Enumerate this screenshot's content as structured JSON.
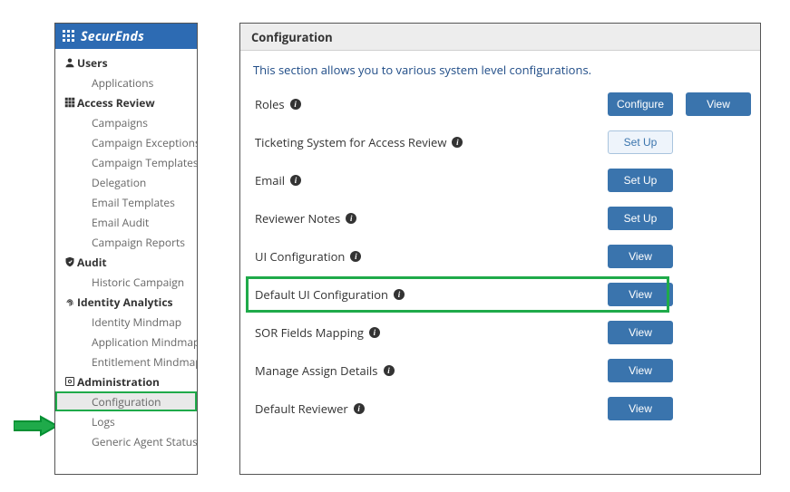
{
  "colors": {
    "brand_blue": "#2d6bb3",
    "button_blue": "#3a74ad",
    "outline_blue_text": "#3a74ad",
    "outline_blue_bg": "#eef4fb",
    "outline_blue_border": "#a9c4de",
    "highlight_green": "#1faa4a",
    "text_dark": "#333333",
    "text_muted": "#666666",
    "desc_navy": "#1f4c87",
    "header_grey": "#ededed"
  },
  "sidebar": {
    "brand": "SecurEnds",
    "items": [
      {
        "type": "section",
        "icon": "person",
        "label": "Users"
      },
      {
        "type": "sub",
        "label": "Applications"
      },
      {
        "type": "section",
        "icon": "grid",
        "label": "Access Review"
      },
      {
        "type": "sub",
        "label": "Campaigns"
      },
      {
        "type": "sub",
        "label": "Campaign Exceptions"
      },
      {
        "type": "sub",
        "label": "Campaign Templates"
      },
      {
        "type": "sub",
        "label": "Delegation"
      },
      {
        "type": "sub",
        "label": "Email Templates"
      },
      {
        "type": "sub",
        "label": "Email Audit"
      },
      {
        "type": "sub",
        "label": "Campaign Reports"
      },
      {
        "type": "section",
        "icon": "shield",
        "label": "Audit"
      },
      {
        "type": "sub",
        "label": "Historic Campaign"
      },
      {
        "type": "section",
        "icon": "fingerprint",
        "label": "Identity Analytics"
      },
      {
        "type": "sub",
        "label": "Identity Mindmap"
      },
      {
        "type": "sub",
        "label": "Application Mindmap"
      },
      {
        "type": "sub",
        "label": "Entitlement Mindmap"
      },
      {
        "type": "section",
        "icon": "gear",
        "label": "Administration"
      },
      {
        "type": "sub",
        "active": true,
        "highlight": true,
        "label": "Configuration"
      },
      {
        "type": "sub",
        "label": "Logs"
      },
      {
        "type": "sub",
        "label": "Generic Agent Status"
      }
    ]
  },
  "main": {
    "title": "Configuration",
    "description": "This section allows you to various system level configurations.",
    "rows": [
      {
        "label": "Roles",
        "buttons": [
          {
            "text": "Configure",
            "style": "primary"
          },
          {
            "text": "View",
            "style": "primary"
          }
        ]
      },
      {
        "label": "Ticketing System for Access Review",
        "buttons": [
          {
            "text": "Set Up",
            "style": "outline"
          }
        ]
      },
      {
        "label": "Email",
        "buttons": [
          {
            "text": "Set Up",
            "style": "primary"
          }
        ]
      },
      {
        "label": "Reviewer Notes",
        "buttons": [
          {
            "text": "Set Up",
            "style": "primary"
          }
        ]
      },
      {
        "label": "UI Configuration",
        "buttons": [
          {
            "text": "View",
            "style": "primary"
          }
        ]
      },
      {
        "label": "Default UI Configuration",
        "highlight": true,
        "buttons": [
          {
            "text": "View",
            "style": "primary"
          }
        ]
      },
      {
        "label": "SOR Fields Mapping",
        "buttons": [
          {
            "text": "View",
            "style": "primary"
          }
        ]
      },
      {
        "label": "Manage Assign Details",
        "buttons": [
          {
            "text": "View",
            "style": "primary"
          }
        ]
      },
      {
        "label": "Default Reviewer",
        "buttons": [
          {
            "text": "View",
            "style": "primary"
          }
        ]
      }
    ]
  }
}
